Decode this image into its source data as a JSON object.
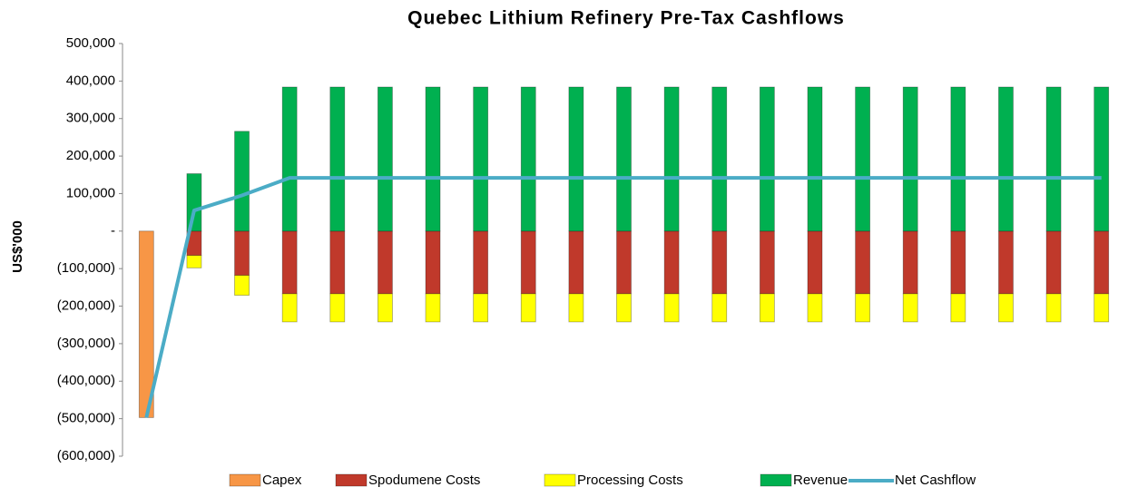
{
  "chart_data": {
    "type": "bar",
    "stacked": true,
    "title": "Quebec Lithium Refinery Pre-Tax Cashflows",
    "ylabel": "US$'000",
    "categories": [
      null,
      null,
      null,
      null,
      null,
      null,
      null,
      null,
      null,
      null,
      null,
      null,
      null,
      null,
      null,
      null,
      null,
      null,
      null,
      null,
      null
    ],
    "series": [
      {
        "name": "Capex",
        "color": "#f79646",
        "type": "bar",
        "values": [
          -497000,
          null,
          null,
          null,
          null,
          null,
          null,
          null,
          null,
          null,
          null,
          null,
          null,
          null,
          null,
          null,
          null,
          null,
          null,
          null,
          null
        ]
      },
      {
        "name": "Spodumene Costs",
        "color": "#c0392b",
        "type": "bar",
        "values": [
          null,
          -65000,
          -118000,
          -167000,
          -167000,
          -167000,
          -167000,
          -167000,
          -167000,
          -167000,
          -167000,
          -167000,
          -167000,
          -167000,
          -167000,
          -167000,
          -167000,
          -167000,
          -167000,
          -167000,
          -167000
        ]
      },
      {
        "name": "Processing Costs",
        "color": "#ffff00",
        "type": "bar",
        "values": [
          null,
          -33000,
          -53000,
          -75000,
          -75000,
          -75000,
          -75000,
          -75000,
          -75000,
          -75000,
          -75000,
          -75000,
          -75000,
          -75000,
          -75000,
          -75000,
          -75000,
          -75000,
          -75000,
          -75000,
          -75000
        ]
      },
      {
        "name": "Revenue",
        "color": "#00b050",
        "type": "bar",
        "values": [
          null,
          153000,
          266000,
          384000,
          384000,
          384000,
          384000,
          384000,
          384000,
          384000,
          384000,
          384000,
          384000,
          384000,
          384000,
          384000,
          384000,
          384000,
          384000,
          384000,
          384000
        ]
      },
      {
        "name": "Net Cashflow",
        "color": "#4bacc6",
        "type": "line",
        "values": [
          -497000,
          55000,
          95000,
          142000,
          142000,
          142000,
          142000,
          142000,
          142000,
          142000,
          142000,
          142000,
          142000,
          142000,
          142000,
          142000,
          142000,
          142000,
          142000,
          142000,
          142000
        ]
      }
    ],
    "ylim": [
      -600000,
      500000
    ],
    "yticks": [
      {
        "value": -600000,
        "label": "(600,000)"
      },
      {
        "value": -500000,
        "label": "(500,000)"
      },
      {
        "value": -400000,
        "label": "(400,000)"
      },
      {
        "value": -300000,
        "label": "(300,000)"
      },
      {
        "value": -200000,
        "label": "(200,000)"
      },
      {
        "value": -100000,
        "label": "(100,000)"
      },
      {
        "value": 0,
        "label": "-"
      },
      {
        "value": 100000,
        "label": "100,000"
      },
      {
        "value": 200000,
        "label": "200,000"
      },
      {
        "value": 300000,
        "label": "300,000"
      },
      {
        "value": 400000,
        "label": "400,000"
      },
      {
        "value": 500000,
        "label": "500,000"
      }
    ],
    "legend": "bottom"
  }
}
